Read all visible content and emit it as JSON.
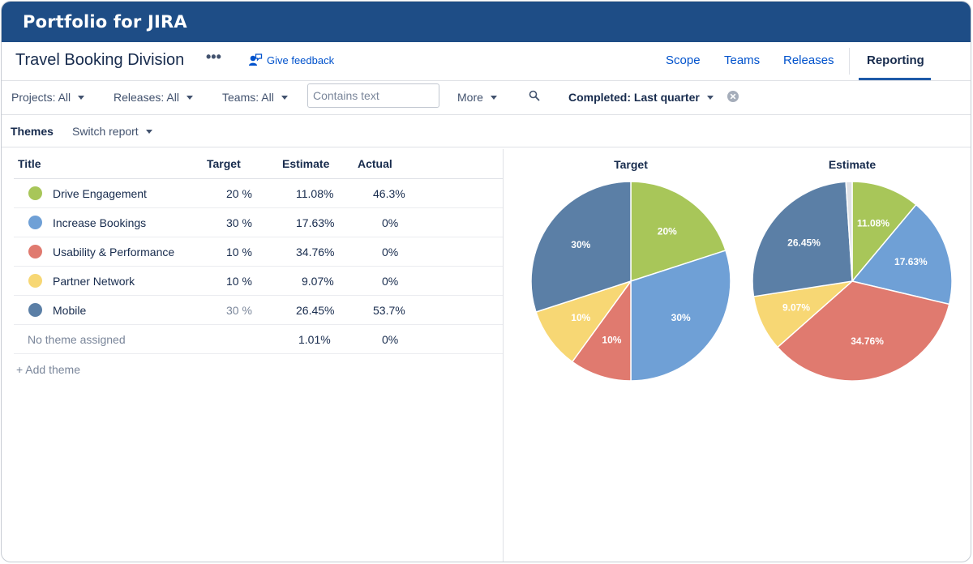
{
  "app": {
    "title": "Portfolio for JIRA"
  },
  "header": {
    "plan_title": "Travel Booking Division",
    "more_label": "•••",
    "feedback_label": "Give feedback",
    "tabs": [
      {
        "label": "Scope",
        "active": false
      },
      {
        "label": "Teams",
        "active": false
      },
      {
        "label": "Releases",
        "active": false
      },
      {
        "label": "Reporting",
        "active": true
      }
    ]
  },
  "filters": {
    "projects": "Projects: All",
    "releases": "Releases: All",
    "teams": "Teams: All",
    "search_placeholder": "Contains text",
    "more": "More",
    "completed": "Completed: Last quarter"
  },
  "report": {
    "label": "Themes",
    "switch": "Switch report"
  },
  "table": {
    "headers": {
      "title": "Title",
      "target": "Target",
      "estimate": "Estimate",
      "actual": "Actual"
    },
    "rows": [
      {
        "title": "Drive Engagement",
        "color": "#a8c659",
        "target": "20 %",
        "estimate": "11.08%",
        "actual": "46.3%",
        "target_muted": false
      },
      {
        "title": "Increase Bookings",
        "color": "#6fa0d6",
        "target": "30 %",
        "estimate": "17.63%",
        "actual": "0%",
        "target_muted": false
      },
      {
        "title": "Usability & Performance",
        "color": "#e07a6f",
        "target": "10 %",
        "estimate": "34.76%",
        "actual": "0%",
        "target_muted": false
      },
      {
        "title": "Partner Network",
        "color": "#f7d774",
        "target": "10 %",
        "estimate": "9.07%",
        "actual": "0%",
        "target_muted": false
      },
      {
        "title": "Mobile",
        "color": "#5b7fa6",
        "target": "30 %",
        "estimate": "26.45%",
        "actual": "53.7%",
        "target_muted": true
      }
    ],
    "unassigned": {
      "title": "No theme assigned",
      "estimate": "1.01%",
      "actual": "0%"
    },
    "add_theme": "+ Add theme"
  },
  "chart_data": [
    {
      "type": "pie",
      "title": "Target",
      "labels": [
        "Drive Engagement",
        "Increase Bookings",
        "Usability & Performance",
        "Partner Network",
        "Mobile"
      ],
      "values": [
        20,
        30,
        10,
        10,
        30
      ],
      "slice_labels": [
        "20%",
        "30%",
        "10%",
        "10%",
        "30%"
      ],
      "colors": [
        "#a8c659",
        "#6fa0d6",
        "#e07a6f",
        "#f7d774",
        "#5b7fa6"
      ]
    },
    {
      "type": "pie",
      "title": "Estimate",
      "labels": [
        "Drive Engagement",
        "Increase Bookings",
        "Usability & Performance",
        "Partner Network",
        "Mobile",
        "No theme assigned"
      ],
      "values": [
        11.08,
        17.63,
        34.76,
        9.07,
        26.45,
        1.01
      ],
      "slice_labels": [
        "11.08%",
        "17.63%",
        "34.76%",
        "9.07%",
        "26.45%",
        ""
      ],
      "colors": [
        "#a8c659",
        "#6fa0d6",
        "#e07a6f",
        "#f7d774",
        "#5b7fa6",
        "#dfe1e6"
      ]
    }
  ]
}
